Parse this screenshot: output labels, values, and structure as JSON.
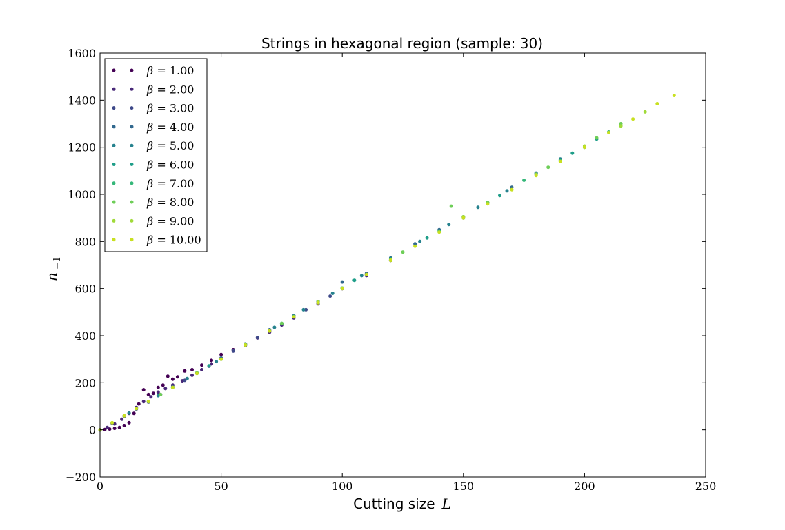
{
  "chart_data": {
    "type": "scatter",
    "title": "Strings in hexagonal region (sample: 30)",
    "xlabel": "Cutting size",
    "xlabel_var": "L",
    "ylabel": "n",
    "ylabel_sub": "−1",
    "xlim": [
      0,
      250
    ],
    "ylim": [
      -200,
      1600
    ],
    "xticks": [
      0,
      50,
      100,
      150,
      200,
      250
    ],
    "yticks": [
      -200,
      0,
      200,
      400,
      600,
      800,
      1000,
      1200,
      1400,
      1600
    ],
    "ytick_labels": [
      "−200",
      "0",
      "200",
      "400",
      "600",
      "800",
      "1000",
      "1200",
      "1400",
      "1600"
    ],
    "legend_position": "top-left",
    "series": [
      {
        "name": "β = 1.00",
        "beta": "1.00",
        "color": "#440154",
        "x": [
          0,
          2,
          4,
          6,
          8,
          10,
          12,
          14,
          16,
          18,
          20,
          22,
          24,
          26,
          28,
          30,
          32,
          35,
          38,
          42,
          46,
          50,
          55,
          60,
          70,
          80,
          90,
          100,
          110,
          120
        ],
        "y": [
          0,
          1,
          3,
          6,
          10,
          18,
          30,
          70,
          110,
          170,
          150,
          155,
          180,
          190,
          228,
          215,
          225,
          250,
          255,
          275,
          295,
          320,
          340,
          365,
          420,
          480,
          540,
          600,
          660,
          720
        ]
      },
      {
        "name": "β = 2.00",
        "beta": "2.00",
        "color": "#482878",
        "x": [
          0,
          3,
          6,
          9,
          12,
          15,
          18,
          21,
          24,
          27,
          30,
          34,
          38,
          42,
          46,
          50,
          55,
          60,
          65,
          70,
          75,
          80,
          90,
          100,
          110
        ],
        "y": [
          0,
          10,
          25,
          45,
          70,
          95,
          120,
          140,
          160,
          175,
          190,
          208,
          232,
          255,
          280,
          305,
          335,
          358,
          390,
          415,
          445,
          475,
          535,
          600,
          655
        ]
      },
      {
        "name": "β = 3.00",
        "beta": "3.00",
        "color": "#3e4989",
        "x": [
          0,
          5,
          10,
          15,
          20,
          25,
          30,
          35,
          40,
          45,
          50,
          55,
          60,
          65,
          70,
          75,
          80,
          85,
          90,
          95,
          100,
          110,
          120
        ],
        "y": [
          0,
          28,
          58,
          88,
          118,
          150,
          180,
          210,
          240,
          270,
          300,
          335,
          360,
          392,
          420,
          450,
          482,
          510,
          540,
          568,
          600,
          660,
          720
        ]
      },
      {
        "name": "β = 4.00",
        "beta": "4.00",
        "color": "#31688e",
        "x": [
          0,
          10,
          20,
          30,
          40,
          50,
          60,
          70,
          80,
          90,
          100,
          110,
          120,
          130,
          140,
          150,
          160,
          170,
          180
        ],
        "y": [
          0,
          60,
          120,
          182,
          242,
          305,
          362,
          425,
          485,
          545,
          628,
          665,
          730,
          790,
          850,
          900,
          965,
          1030,
          1090
        ]
      },
      {
        "name": "β = 5.00",
        "beta": "5.00",
        "color": "#26828e",
        "x": [
          0,
          12,
          24,
          36,
          48,
          60,
          72,
          84,
          96,
          108,
          120,
          132,
          144,
          156,
          168,
          180,
          190,
          200
        ],
        "y": [
          0,
          72,
          145,
          218,
          290,
          365,
          435,
          510,
          580,
          655,
          728,
          800,
          872,
          945,
          1015,
          1090,
          1150,
          1200
        ]
      },
      {
        "name": "β = 6.00",
        "beta": "6.00",
        "color": "#1f9e89",
        "x": [
          0,
          15,
          30,
          45,
          60,
          75,
          90,
          105,
          120,
          135,
          150,
          165,
          180,
          195,
          205
        ],
        "y": [
          0,
          90,
          180,
          272,
          362,
          452,
          545,
          635,
          725,
          815,
          905,
          995,
          1085,
          1175,
          1235
        ]
      },
      {
        "name": "β = 7.00",
        "beta": "7.00",
        "color": "#35b779",
        "x": [
          0,
          20,
          40,
          60,
          80,
          100,
          120,
          140,
          160,
          175,
          190,
          210
        ],
        "y": [
          0,
          120,
          242,
          362,
          482,
          602,
          722,
          845,
          965,
          1060,
          1145,
          1265
        ]
      },
      {
        "name": "β = 8.00",
        "beta": "8.00",
        "color": "#6ece58",
        "x": [
          0,
          25,
          50,
          75,
          100,
          125,
          145,
          160,
          185,
          205,
          215
        ],
        "y": [
          0,
          150,
          300,
          452,
          602,
          755,
          950,
          965,
          1115,
          1240,
          1300
        ]
      },
      {
        "name": "β = 9.00",
        "beta": "9.00",
        "color": "#a0da39",
        "x": [
          0,
          30,
          60,
          90,
          120,
          150,
          180,
          200,
          215,
          225
        ],
        "y": [
          0,
          180,
          362,
          542,
          722,
          905,
          1085,
          1205,
          1290,
          1350
        ]
      },
      {
        "name": "β = 10.00",
        "beta": "10.00",
        "color": "#c8e020",
        "x": [
          0,
          5,
          10,
          15,
          20,
          30,
          40,
          50,
          60,
          70,
          80,
          90,
          100,
          110,
          120,
          130,
          140,
          150,
          160,
          170,
          180,
          190,
          200,
          210,
          220,
          230,
          237
        ],
        "y": [
          0,
          30,
          60,
          90,
          120,
          180,
          240,
          300,
          360,
          420,
          480,
          540,
          600,
          660,
          720,
          780,
          840,
          900,
          960,
          1020,
          1080,
          1140,
          1200,
          1262,
          1320,
          1385,
          1420
        ]
      }
    ]
  }
}
